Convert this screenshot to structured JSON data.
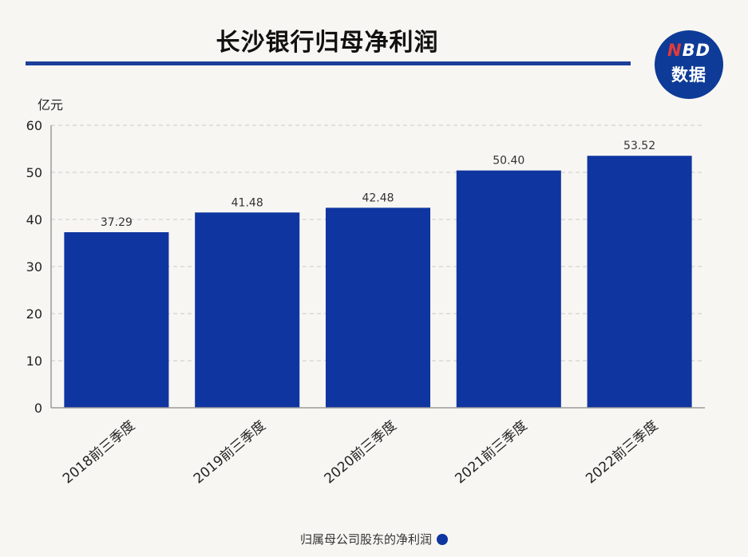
{
  "title": "长沙银行归母净利润",
  "logo": {
    "top": "NBD",
    "bottom": "数据"
  },
  "colors": {
    "bar": "#0f35a0",
    "title_rule": "#1d3f9a",
    "logo_bg": "#0d3b97",
    "logo_accent": "#e23a3a"
  },
  "chart_data": {
    "type": "bar",
    "title": "长沙银行归母净利润",
    "ylabel": "亿元",
    "xlabel": "",
    "ylim": [
      0,
      60
    ],
    "yticks": [
      0,
      10,
      20,
      30,
      40,
      50,
      60
    ],
    "grid": "horizontal-dashed",
    "legend_position": "bottom",
    "categories": [
      "2018前三季度",
      "2019前三季度",
      "2020前三季度",
      "2021前三季度",
      "2022前三季度"
    ],
    "series": [
      {
        "name": "归属母公司股东的净利润",
        "values": [
          37.29,
          41.48,
          42.48,
          50.4,
          53.52
        ],
        "labels": [
          "37.29",
          "41.48",
          "42.48",
          "50.40",
          "53.52"
        ]
      }
    ]
  }
}
